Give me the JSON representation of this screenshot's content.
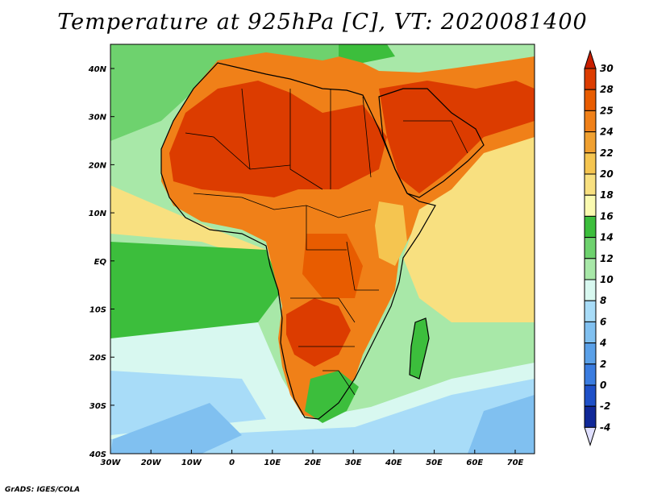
{
  "title": "Temperature at 925hPa [C], VT: 2020081400",
  "credit": "GrADS: IGES/COLA",
  "lat_ticks": [
    "40N",
    "30N",
    "20N",
    "10N",
    "EQ",
    "10S",
    "20S",
    "30S",
    "40S"
  ],
  "lon_ticks": [
    "30W",
    "20W",
    "10W",
    "0",
    "10E",
    "20E",
    "30E",
    "40E",
    "50E",
    "60E",
    "70E"
  ],
  "colorbar": {
    "labels": [
      "30",
      "28",
      "25",
      "24",
      "22",
      "20",
      "18",
      "16",
      "14",
      "12",
      "10",
      "8",
      "6",
      "4",
      "2",
      "0",
      "-2",
      "-4"
    ],
    "colors": [
      "#c81e00",
      "#dc3c00",
      "#e85c00",
      "#f08018",
      "#f0a030",
      "#f5c550",
      "#f8e080",
      "#fafab0",
      "#3cbe3c",
      "#6ed26e",
      "#a8e8a8",
      "#d8f8f0",
      "#a8dcf8",
      "#80c0f0",
      "#5aa0e8",
      "#3a7ce0",
      "#1e50c8",
      "#102898",
      "#08106a"
    ],
    "top_color": "#c81e00",
    "bottom_color": "#e0e0ff"
  },
  "map_colors": {
    "ocean_tropical": "#f8e080",
    "ocean_green": "#6ed26e",
    "ocean_lightgreen": "#a8e8a8",
    "ocean_pale": "#d8f8f0",
    "ocean_blue": "#a8dcf8",
    "ocean_deepblue": "#80c0f0",
    "land_hot": "#dc3c00",
    "land_warm": "#e85c00",
    "land_orange": "#f08018",
    "land_yellow": "#f5c550",
    "land_green": "#3cbe3c"
  }
}
